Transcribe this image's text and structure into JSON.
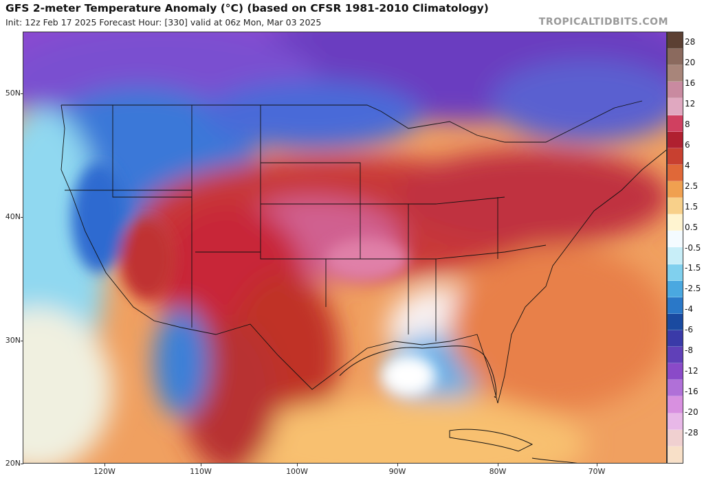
{
  "header": {
    "title": "GFS 2-meter Temperature Anomaly (°C) (based on CFSR 1981-2010 Climatology)",
    "subtitle": "Init: 12z Feb 17 2025   Forecast Hour: [330]   valid at 06z Mon, Mar 03 2025",
    "brand": "TROPICALTIDBITS.COM"
  },
  "axes": {
    "lat_labels": [
      "50N",
      "40N",
      "30N",
      "20N"
    ],
    "lon_labels": [
      "120W",
      "110W",
      "100W",
      "90W",
      "80W",
      "70W"
    ]
  },
  "legend": {
    "labels": [
      "28",
      "20",
      "16",
      "12",
      "8",
      "6",
      "4",
      "2.5",
      "1.5",
      "0.5",
      "-0.5",
      "-1.5",
      "-2.5",
      "-4",
      "-6",
      "-8",
      "-12",
      "-16",
      "-20",
      "-28"
    ],
    "colors": [
      "#5c4033",
      "#8b6a5e",
      "#a8857a",
      "#c98aa0",
      "#e0a8c0",
      "#d04060",
      "#b02030",
      "#c84030",
      "#e06838",
      "#f0a050",
      "#f8d08a",
      "#fff4d0",
      "#f4fbff",
      "#c8eef8",
      "#80d0ee",
      "#4aa8e0",
      "#2a78c8",
      "#1a4aa0",
      "#3a3aa8",
      "#6040b8",
      "#8a4ac8",
      "#b070d8",
      "#d890e0",
      "#e8b8e8",
      "#f0d0d0",
      "#f8e0c8"
    ]
  }
}
